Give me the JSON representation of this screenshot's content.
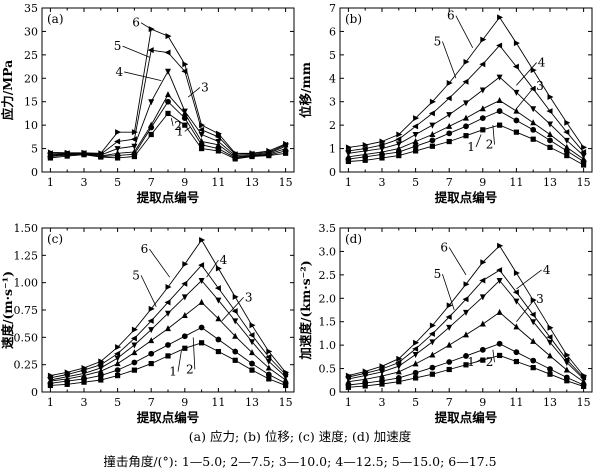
{
  "caption": {
    "line1": "(a) 应力; (b) 位移; (c) 速度; (d) 加速度",
    "line2": "撞击角度/(°): 1—5.0; 2—7.5; 3—10.0; 4—12.5; 5—15.0; 6—17.5"
  },
  "chart_data": [
    {
      "type": "line",
      "panel": "(a)",
      "xlabel": "提取点编号",
      "ylabel": "应力/MPa",
      "xlim": [
        0.5,
        15.5
      ],
      "ylim": [
        0,
        35
      ],
      "xticks": [
        1,
        3,
        5,
        7,
        9,
        11,
        13,
        15
      ],
      "yticks": [
        0,
        5,
        10,
        15,
        20,
        25,
        30,
        35
      ],
      "yticklabels": [
        "0",
        "5",
        "10",
        "15",
        "20",
        "25",
        "30",
        "35"
      ],
      "x": [
        1,
        2,
        3,
        4,
        5,
        6,
        7,
        8,
        9,
        10,
        11,
        12,
        13,
        14,
        15
      ],
      "series": [
        {
          "name": "1",
          "marker": "square",
          "values": [
            3.0,
            3.4,
            3.7,
            3.2,
            3.0,
            3.3,
            8.0,
            12.5,
            10.0,
            5.0,
            4.5,
            2.8,
            3.3,
            3.5,
            4.0
          ]
        },
        {
          "name": "2",
          "marker": "circle",
          "values": [
            3.3,
            3.6,
            3.8,
            3.3,
            3.5,
            3.8,
            9.5,
            15.0,
            11.5,
            5.8,
            5.0,
            3.0,
            3.4,
            3.6,
            4.5
          ]
        },
        {
          "name": "3",
          "marker": "triangle-up",
          "values": [
            3.5,
            3.8,
            3.9,
            3.4,
            4.0,
            4.3,
            10.0,
            16.5,
            12.5,
            6.5,
            5.8,
            3.2,
            3.5,
            3.8,
            5.0
          ]
        },
        {
          "name": "4",
          "marker": "triangle-down",
          "values": [
            3.7,
            3.9,
            4.0,
            3.6,
            5.0,
            5.5,
            15.0,
            21.5,
            13.0,
            8.0,
            6.5,
            3.5,
            3.7,
            4.0,
            5.5
          ]
        },
        {
          "name": "5",
          "marker": "triangle-left",
          "values": [
            4.0,
            4.0,
            4.0,
            3.8,
            6.5,
            7.0,
            26.0,
            25.5,
            21.5,
            9.0,
            7.5,
            3.8,
            3.9,
            4.2,
            5.8
          ]
        },
        {
          "name": "6",
          "marker": "triangle-right",
          "values": [
            4.2,
            4.1,
            4.1,
            4.0,
            8.5,
            8.5,
            30.5,
            29.0,
            23.0,
            10.0,
            8.2,
            4.0,
            4.0,
            4.5,
            6.0
          ]
        }
      ],
      "annotations": [
        "1",
        "2",
        "3",
        "4",
        "5",
        "6"
      ]
    },
    {
      "type": "line",
      "panel": "(b)",
      "xlabel": "提取点编号",
      "ylabel": "位移/mm",
      "xlim": [
        0.5,
        15.5
      ],
      "ylim": [
        0,
        7
      ],
      "xticks": [
        1,
        3,
        5,
        7,
        9,
        11,
        13,
        15
      ],
      "yticks": [
        0,
        1,
        2,
        3,
        4,
        5,
        6,
        7
      ],
      "yticklabels": [
        "0",
        "1",
        "2",
        "3",
        "4",
        "5",
        "6",
        "7"
      ],
      "x": [
        1,
        2,
        3,
        4,
        5,
        6,
        7,
        8,
        9,
        10,
        11,
        12,
        13,
        14,
        15
      ],
      "series": [
        {
          "name": "1",
          "marker": "square",
          "values": [
            0.45,
            0.5,
            0.6,
            0.7,
            0.9,
            1.1,
            1.3,
            1.55,
            1.8,
            2.0,
            1.7,
            1.4,
            1.05,
            0.7,
            0.3
          ]
        },
        {
          "name": "2",
          "marker": "circle",
          "values": [
            0.55,
            0.65,
            0.75,
            0.85,
            1.1,
            1.35,
            1.65,
            1.95,
            2.3,
            2.6,
            2.2,
            1.8,
            1.35,
            0.9,
            0.45
          ]
        },
        {
          "name": "3",
          "marker": "triangle-up",
          "values": [
            0.65,
            0.75,
            0.85,
            1.0,
            1.3,
            1.6,
            1.95,
            2.3,
            2.7,
            3.05,
            2.6,
            2.1,
            1.6,
            1.05,
            0.55
          ]
        },
        {
          "name": "4",
          "marker": "triangle-down",
          "values": [
            0.8,
            0.9,
            1.0,
            1.2,
            1.6,
            2.0,
            2.45,
            2.95,
            3.5,
            4.05,
            3.4,
            2.7,
            2.05,
            1.35,
            0.7
          ]
        },
        {
          "name": "5",
          "marker": "triangle-left",
          "values": [
            0.9,
            1.0,
            1.15,
            1.4,
            1.95,
            2.5,
            3.15,
            3.85,
            4.6,
            5.4,
            4.5,
            3.55,
            2.6,
            1.7,
            0.85
          ]
        },
        {
          "name": "6",
          "marker": "triangle-right",
          "values": [
            1.05,
            1.15,
            1.3,
            1.6,
            2.3,
            3.0,
            3.8,
            4.7,
            5.65,
            6.6,
            5.5,
            4.35,
            3.2,
            2.1,
            1.05
          ]
        }
      ],
      "annotations": [
        "1",
        "2",
        "3",
        "4",
        "5",
        "6"
      ]
    },
    {
      "type": "line",
      "panel": "(c)",
      "xlabel": "提取点编号",
      "ylabel": "速度/(m·s⁻¹)",
      "xlim": [
        0.5,
        15.5
      ],
      "ylim": [
        0,
        1.5
      ],
      "xticks": [
        1,
        3,
        5,
        7,
        9,
        11,
        13,
        15
      ],
      "yticks": [
        0,
        0.25,
        0.5,
        0.75,
        1.0,
        1.25,
        1.5
      ],
      "yticklabels": [
        "0",
        "0.25",
        "0.50",
        "0.75",
        "1.00",
        "1.25",
        "1.50"
      ],
      "x": [
        1,
        2,
        3,
        4,
        5,
        6,
        7,
        8,
        9,
        10,
        11,
        12,
        13,
        14,
        15
      ],
      "series": [
        {
          "name": "1",
          "marker": "square",
          "values": [
            0.06,
            0.07,
            0.09,
            0.11,
            0.15,
            0.2,
            0.26,
            0.33,
            0.4,
            0.45,
            0.37,
            0.29,
            0.2,
            0.12,
            0.06
          ]
        },
        {
          "name": "2",
          "marker": "circle",
          "values": [
            0.08,
            0.1,
            0.12,
            0.15,
            0.2,
            0.27,
            0.35,
            0.43,
            0.51,
            0.59,
            0.48,
            0.37,
            0.26,
            0.16,
            0.08
          ]
        },
        {
          "name": "3",
          "marker": "triangle-up",
          "values": [
            0.1,
            0.12,
            0.15,
            0.19,
            0.26,
            0.36,
            0.47,
            0.58,
            0.7,
            0.82,
            0.67,
            0.51,
            0.36,
            0.22,
            0.11
          ]
        },
        {
          "name": "4",
          "marker": "triangle-down",
          "values": [
            0.11,
            0.14,
            0.17,
            0.22,
            0.31,
            0.43,
            0.57,
            0.72,
            0.87,
            1.02,
            0.84,
            0.65,
            0.46,
            0.28,
            0.14
          ]
        },
        {
          "name": "5",
          "marker": "triangle-left",
          "values": [
            0.13,
            0.16,
            0.2,
            0.25,
            0.35,
            0.49,
            0.65,
            0.82,
            0.99,
            1.16,
            0.95,
            0.74,
            0.52,
            0.32,
            0.16
          ]
        },
        {
          "name": "6",
          "marker": "triangle-right",
          "values": [
            0.15,
            0.18,
            0.22,
            0.28,
            0.41,
            0.57,
            0.76,
            0.96,
            1.17,
            1.39,
            1.13,
            0.87,
            0.61,
            0.37,
            0.18
          ]
        }
      ],
      "annotations": [
        "1",
        "2",
        "3",
        "4",
        "5",
        "6"
      ]
    },
    {
      "type": "line",
      "panel": "(d)",
      "xlabel": "提取点编号",
      "ylabel": "加速度/(km·s⁻²)",
      "xlim": [
        0.5,
        15.5
      ],
      "ylim": [
        0,
        3.5
      ],
      "xticks": [
        1,
        3,
        5,
        7,
        9,
        11,
        13,
        15
      ],
      "yticks": [
        0,
        0.5,
        1.0,
        1.5,
        2.0,
        2.5,
        3.0,
        3.5
      ],
      "yticklabels": [
        "0",
        "0.5",
        "1.0",
        "1.5",
        "2.0",
        "2.5",
        "3.0",
        "3.5"
      ],
      "x": [
        1,
        2,
        3,
        4,
        5,
        6,
        7,
        8,
        9,
        10,
        11,
        12,
        13,
        14,
        15
      ],
      "series": [
        {
          "name": "1",
          "marker": "square",
          "values": [
            0.1,
            0.13,
            0.17,
            0.22,
            0.3,
            0.38,
            0.48,
            0.58,
            0.68,
            0.78,
            0.65,
            0.52,
            0.38,
            0.24,
            0.12
          ]
        },
        {
          "name": "2",
          "marker": "circle",
          "values": [
            0.15,
            0.19,
            0.24,
            0.3,
            0.41,
            0.52,
            0.64,
            0.77,
            0.9,
            1.03,
            0.85,
            0.67,
            0.49,
            0.31,
            0.15
          ]
        },
        {
          "name": "3",
          "marker": "triangle-up",
          "values": [
            0.22,
            0.27,
            0.34,
            0.43,
            0.6,
            0.79,
            1.0,
            1.22,
            1.45,
            1.7,
            1.39,
            1.08,
            0.77,
            0.47,
            0.22
          ]
        },
        {
          "name": "4",
          "marker": "triangle-down",
          "values": [
            0.28,
            0.35,
            0.43,
            0.55,
            0.8,
            1.07,
            1.38,
            1.7,
            2.03,
            2.38,
            1.94,
            1.5,
            1.06,
            0.63,
            0.28
          ]
        },
        {
          "name": "5",
          "marker": "triangle-left",
          "values": [
            0.32,
            0.4,
            0.49,
            0.63,
            0.92,
            1.24,
            1.6,
            1.98,
            2.38,
            2.6,
            2.13,
            1.65,
            1.17,
            0.69,
            0.31
          ]
        },
        {
          "name": "6",
          "marker": "triangle-right",
          "values": [
            0.35,
            0.44,
            0.55,
            0.71,
            1.05,
            1.42,
            1.85,
            2.3,
            2.77,
            3.12,
            2.54,
            1.96,
            1.37,
            0.79,
            0.35
          ]
        }
      ],
      "annotations": [
        "1",
        "2",
        "3",
        "4",
        "5",
        "6"
      ]
    }
  ]
}
